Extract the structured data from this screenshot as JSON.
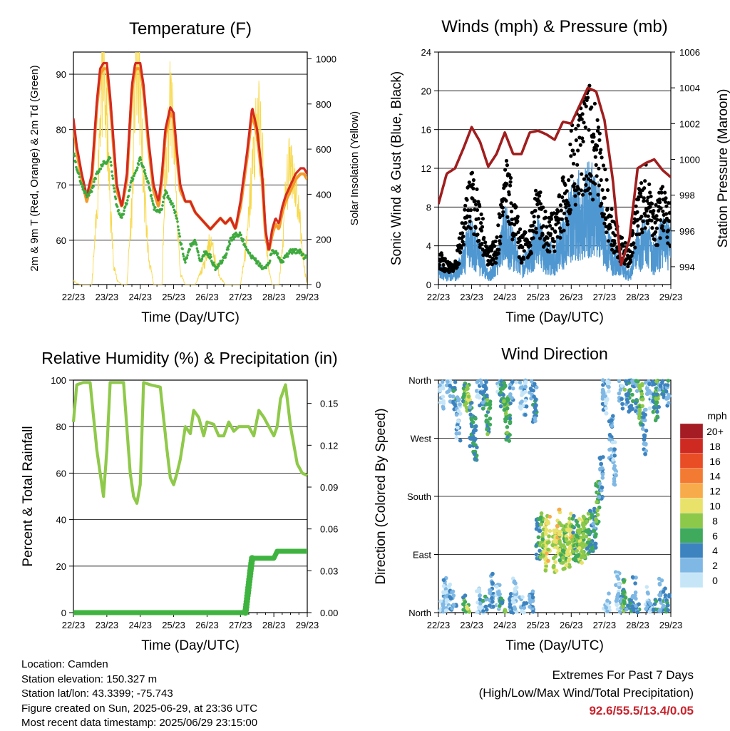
{
  "time_axis": {
    "ticks": [
      "22/23",
      "23/23",
      "24/23",
      "25/23",
      "26/23",
      "27/23",
      "28/23",
      "29/23"
    ],
    "label": "Time (Day/UTC)"
  },
  "chart_data": [
    {
      "id": "temperature",
      "type": "line",
      "title": "Temperature (F)",
      "ylabel": "2m & 9m T (Red, Orange) & 2m Td (Green)",
      "y2label": "Solar Insolation (Yellow)",
      "ylim": [
        52,
        94
      ],
      "yticks": [
        60,
        70,
        80,
        90
      ],
      "y2lim": [
        0,
        1030
      ],
      "y2ticks": [
        0,
        200,
        400,
        600,
        800,
        1000
      ],
      "grid": true,
      "colors": {
        "t2m": "#d42a20",
        "t9m": "#f59a2a",
        "td": "#3eaa3e",
        "solar": "#f7d84a"
      },
      "x": [
        0,
        0.1,
        0.25,
        0.4,
        0.55,
        0.7,
        0.8,
        0.9,
        1.0,
        1.1,
        1.2,
        1.3,
        1.45,
        1.6,
        1.75,
        1.85,
        1.95,
        2.0,
        2.1,
        2.25,
        2.4,
        2.55,
        2.65,
        2.75,
        2.9,
        3.0,
        3.1,
        3.2,
        3.35,
        3.5,
        3.65,
        3.8,
        3.95,
        4.1,
        4.25,
        4.4,
        4.55,
        4.7,
        4.85,
        5.0,
        5.2,
        5.35,
        5.5,
        5.65,
        5.75,
        5.85,
        5.95,
        6.05,
        6.15,
        6.25,
        6.35,
        6.5,
        6.65,
        6.8,
        6.9,
        7.0
      ],
      "series": [
        {
          "key": "t2m",
          "values": [
            82,
            77,
            72,
            68,
            72,
            85,
            91,
            92,
            92,
            86,
            78,
            70,
            66,
            72,
            88,
            92,
            92,
            92,
            88,
            78,
            70,
            67,
            72,
            80,
            84,
            83,
            76,
            70,
            67,
            67,
            65,
            64,
            63,
            62,
            63,
            64,
            63,
            64,
            62,
            67,
            76,
            84,
            80,
            72,
            62,
            58,
            62,
            64,
            63,
            66,
            68,
            70,
            72,
            73,
            73,
            72
          ]
        },
        {
          "key": "t9m",
          "values": [
            81,
            76,
            71,
            67,
            71,
            84,
            90,
            91,
            91,
            85,
            77,
            69,
            66,
            71,
            87,
            91,
            91,
            91,
            87,
            77,
            69,
            66,
            71,
            79,
            83,
            82,
            75,
            69,
            67,
            67,
            65,
            64,
            63,
            62,
            63,
            64,
            63,
            64,
            62,
            66,
            75,
            83,
            79,
            71,
            61,
            58,
            61,
            63,
            62,
            65,
            67,
            69,
            71,
            72,
            72,
            71
          ]
        },
        {
          "key": "td",
          "values": [
            76,
            73,
            70,
            68,
            69,
            72,
            73,
            74,
            74,
            75,
            70,
            66,
            64,
            67,
            71,
            72,
            74,
            75,
            73,
            70,
            66,
            65,
            66,
            69,
            67,
            66,
            64,
            60,
            56,
            59,
            60,
            56,
            58,
            57,
            55,
            56,
            57,
            60,
            61,
            61,
            58,
            57,
            56,
            55,
            55,
            56,
            58,
            58,
            57,
            56,
            57,
            58,
            58,
            58,
            57,
            57
          ]
        },
        {
          "key": "solar",
          "values": [
            20,
            5,
            0,
            0,
            0,
            300,
            800,
            900,
            700,
            350,
            100,
            20,
            0,
            0,
            350,
            900,
            950,
            800,
            450,
            120,
            0,
            0,
            0,
            500,
            800,
            650,
            300,
            50,
            0,
            0,
            0,
            50,
            100,
            200,
            100,
            30,
            0,
            0,
            0,
            0,
            200,
            500,
            750,
            600,
            250,
            60,
            0,
            0,
            0,
            150,
            400,
            550,
            450,
            250,
            80,
            0
          ]
        }
      ]
    },
    {
      "id": "winds",
      "type": "scatter",
      "title": "Winds (mph) & Pressure (mb)",
      "ylabel": "Sonic Wind & Gust (Blue, Black)",
      "y2label": "Station Pressure (Maroon)",
      "ylim": [
        0,
        24
      ],
      "yticks": [
        0,
        4,
        8,
        12,
        16,
        20,
        24
      ],
      "y2lim": [
        993.0,
        1006.0
      ],
      "y2ticks": [
        994,
        996,
        998,
        1000,
        1002,
        1004,
        1006
      ],
      "grid": true,
      "colors": {
        "wind": "#4f97d1",
        "gust": "#000000",
        "pressure": "#a01e1e"
      },
      "x": [
        0,
        0.25,
        0.5,
        0.75,
        1.0,
        1.25,
        1.5,
        1.75,
        2.0,
        2.25,
        2.5,
        2.75,
        3.0,
        3.25,
        3.5,
        3.75,
        4.0,
        4.25,
        4.5,
        4.75,
        5.0,
        5.25,
        5.5,
        5.75,
        6.0,
        6.25,
        6.5,
        6.75,
        7.0
      ],
      "series": [
        {
          "key": "wind",
          "name": "Sonic Wind",
          "values": [
            2,
            1,
            1,
            3,
            5,
            3,
            1,
            2,
            6,
            4,
            2,
            3,
            5,
            3,
            3,
            5,
            7,
            8,
            9,
            8,
            5,
            3,
            2,
            1,
            4,
            5,
            3,
            5,
            4
          ]
        },
        {
          "key": "gust",
          "name": "Gust",
          "values": [
            3,
            2,
            2,
            6,
            10,
            7,
            3,
            4,
            11,
            8,
            4,
            5,
            9,
            6,
            6,
            9,
            13,
            15,
            17,
            15,
            10,
            6,
            4,
            3,
            8,
            10,
            6,
            9,
            7
          ]
        },
        {
          "key": "pressure",
          "name": "Station Pressure",
          "values": [
            997.5,
            999.2,
            999.5,
            1000.6,
            1001.8,
            1001.0,
            999.6,
            1000.3,
            1001.5,
            1000.3,
            1000.3,
            1001.5,
            1001.6,
            1001.4,
            1001.1,
            1002.1,
            1002.0,
            1003.0,
            1004.0,
            1003.8,
            1002.2,
            998.9,
            994.1,
            995.5,
            999.5,
            999.8,
            1000.0,
            999.4,
            999.0
          ]
        }
      ]
    },
    {
      "id": "humidity",
      "type": "line",
      "title": "Relative Humidity (%) & Precipitation (in)",
      "ylabel": "Percent & Total Rainfall",
      "ylim": [
        0,
        100
      ],
      "yticks": [
        0,
        20,
        40,
        60,
        80,
        100
      ],
      "y2lim": [
        0,
        0.1667
      ],
      "y2ticks": [
        "0.00",
        "0.03",
        "0.06",
        "0.09",
        "0.12",
        "0.15"
      ],
      "grid": true,
      "colors": {
        "rh": "#8fc94a",
        "precip": "#3fb33f"
      },
      "x": [
        0,
        0.1,
        0.3,
        0.5,
        0.7,
        0.8,
        0.9,
        1.0,
        1.1,
        1.3,
        1.5,
        1.7,
        1.8,
        1.9,
        2.0,
        2.1,
        2.3,
        2.6,
        2.8,
        2.9,
        3.0,
        3.1,
        3.2,
        3.35,
        3.5,
        3.6,
        3.75,
        3.9,
        4.0,
        4.2,
        4.35,
        4.5,
        4.65,
        4.8,
        4.95,
        5.1,
        5.25,
        5.4,
        5.55,
        5.7,
        5.85,
        6.0,
        6.1,
        6.2,
        6.35,
        6.5,
        6.7,
        6.85,
        7.0
      ],
      "series": [
        {
          "key": "rh",
          "name": "Relative Humidity",
          "values": [
            82,
            98,
            99,
            99,
            70,
            60,
            50,
            70,
            99,
            99,
            99,
            60,
            50,
            47,
            55,
            99,
            98,
            97,
            70,
            58,
            55,
            60,
            66,
            80,
            77,
            87,
            84,
            76,
            82,
            81,
            76,
            76,
            82,
            78,
            80,
            80,
            80,
            76,
            87,
            84,
            80,
            76,
            80,
            92,
            98,
            80,
            64,
            60,
            59
          ]
        },
        {
          "key": "precip",
          "name": "Total Rainfall",
          "x": [
            0,
            5.15,
            5.2,
            5.25,
            5.3,
            5.35,
            6.0,
            6.1,
            6.2,
            7.0
          ],
          "values": [
            0,
            0,
            0.01,
            0.02,
            0.03,
            0.039,
            0.039,
            0.044,
            0.044,
            0.044
          ]
        }
      ]
    },
    {
      "id": "direction",
      "type": "scatter",
      "title": "Wind Direction",
      "ylabel": "Direction (Colored By Speed)",
      "yticks": [
        "North",
        "East",
        "South",
        "West",
        "North"
      ],
      "grid": true,
      "colorbar": {
        "title": "mph",
        "labels": [
          "20+",
          "18",
          "16",
          "14",
          "12",
          "10",
          "8",
          "6",
          "4",
          "2",
          "0"
        ],
        "colors": [
          "#a51c24",
          "#cf2a22",
          "#e84d26",
          "#f27a32",
          "#f7ab4a",
          "#e8e26a",
          "#8cc84a",
          "#3fa95c",
          "#3c83c0",
          "#7fb8e4",
          "#c6e6f8"
        ]
      },
      "x": [
        0.1,
        0.2,
        0.3,
        0.4,
        0.5,
        0.6,
        0.8,
        0.9,
        1.0,
        1.1,
        1.2,
        1.3,
        1.4,
        1.5,
        1.6,
        1.8,
        1.9,
        2.0,
        2.1,
        2.2,
        2.3,
        2.5,
        2.6,
        2.8,
        2.9,
        3.0,
        3.1,
        3.2,
        3.3,
        3.5,
        3.6,
        3.7,
        3.8,
        3.9,
        4.0,
        4.1,
        4.2,
        4.3,
        4.4,
        4.5,
        4.6,
        4.7,
        4.8,
        4.9,
        5.0,
        5.1,
        5.2,
        5.3,
        5.4,
        5.5,
        5.6,
        5.7,
        5.8,
        5.9,
        6.0,
        6.1,
        6.2,
        6.3,
        6.4,
        6.5,
        6.6,
        6.7,
        6.8,
        6.9
      ],
      "directions": [
        350,
        20,
        10,
        360,
        345,
        300,
        355,
        340,
        290,
        270,
        5,
        355,
        350,
        310,
        40,
        10,
        350,
        330,
        300,
        355,
        20,
        350,
        340,
        360,
        330,
        110,
        120,
        100,
        115,
        95,
        125,
        110,
        100,
        105,
        120,
        115,
        110,
        110,
        115,
        120,
        125,
        130,
        170,
        210,
        340,
        355,
        270,
        230,
        30,
        350,
        20,
        340,
        345,
        20,
        340,
        320,
        280,
        10,
        350,
        345,
        330,
        20,
        5,
        355
      ],
      "speeds": [
        1,
        2,
        1,
        3,
        4,
        2,
        6,
        8,
        4,
        5,
        1,
        2,
        4,
        6,
        3,
        1,
        5,
        7,
        6,
        3,
        1,
        1,
        2,
        3,
        4,
        4,
        7,
        9,
        10,
        9,
        11,
        8,
        7,
        9,
        10,
        6,
        7,
        9,
        8,
        6,
        5,
        4,
        7,
        3,
        2,
        1,
        3,
        2,
        1,
        2,
        6,
        4,
        5,
        3,
        4,
        7,
        3,
        2,
        2,
        5,
        6,
        3,
        4,
        4
      ]
    }
  ],
  "info": {
    "location": "Location: Camden",
    "elevation": "Station elevation: 150.327 m",
    "latlon": "Station lat/lon: 43.3399; -75.743",
    "created": "Figure created on Sun, 2025-06-29, at 23:36 UTC",
    "recent": "Most recent data timestamp: 2025/06/29 23:15:00"
  },
  "extremes": {
    "title": "Extremes For Past 7 Days",
    "subtitle": "(High/Low/Max Wind/Total Precipitation)",
    "values": "92.6/55.5/13.4/0.05"
  }
}
